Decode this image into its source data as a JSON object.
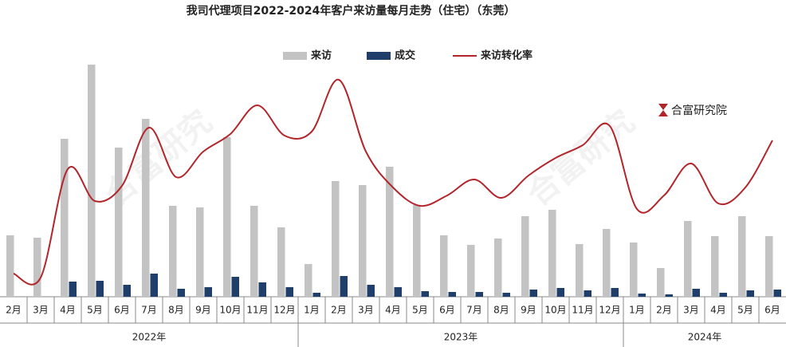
{
  "chart_data": {
    "type": "bar",
    "title": "我司代理项目2022-2024年客户来访量每月走势（住宅）（东莞）",
    "watermark": "合富研究",
    "logo": "合富研究院",
    "groups": [
      {
        "label": "2022年",
        "categories": [
          "2月",
          "3月",
          "4月",
          "5月",
          "6月",
          "7月",
          "8月",
          "9月",
          "10月",
          "11月",
          "12月"
        ]
      },
      {
        "label": "2023年",
        "categories": [
          "1月",
          "2月",
          "3月",
          "4月",
          "5月",
          "6月",
          "7月",
          "8月",
          "9月",
          "10月",
          "11月",
          "12月"
        ]
      },
      {
        "label": "2024年",
        "categories": [
          "1月",
          "2月",
          "3月",
          "4月",
          "5月",
          "6月"
        ]
      }
    ],
    "series": [
      {
        "name": "来访",
        "type": "bar",
        "color": "#c3c3c3",
        "values": [
          77,
          74,
          198,
          291,
          187,
          223,
          114,
          112,
          200,
          114,
          87,
          41,
          145,
          140,
          163,
          115,
          77,
          65,
          73,
          101,
          109,
          66,
          85,
          68,
          36,
          95,
          76,
          101,
          76
        ]
      },
      {
        "name": "成交",
        "type": "bar",
        "color": "#1f3f6a",
        "values": [
          0,
          0,
          19,
          20,
          15,
          29,
          10,
          12,
          25,
          18,
          12,
          5,
          26,
          15,
          12,
          7,
          6,
          6,
          5,
          9,
          11,
          8,
          11,
          4,
          3,
          10,
          5,
          8,
          9
        ]
      },
      {
        "name": "来访转化率",
        "type": "line",
        "color": "#b2262b",
        "values": [
          29,
          24,
          160,
          120,
          139,
          212,
          150,
          182,
          204,
          240,
          202,
          207,
          272,
          182,
          137,
          114,
          127,
          147,
          124,
          152,
          174,
          190,
          214,
          110,
          127,
          167,
          117,
          137,
          196
        ]
      }
    ]
  }
}
